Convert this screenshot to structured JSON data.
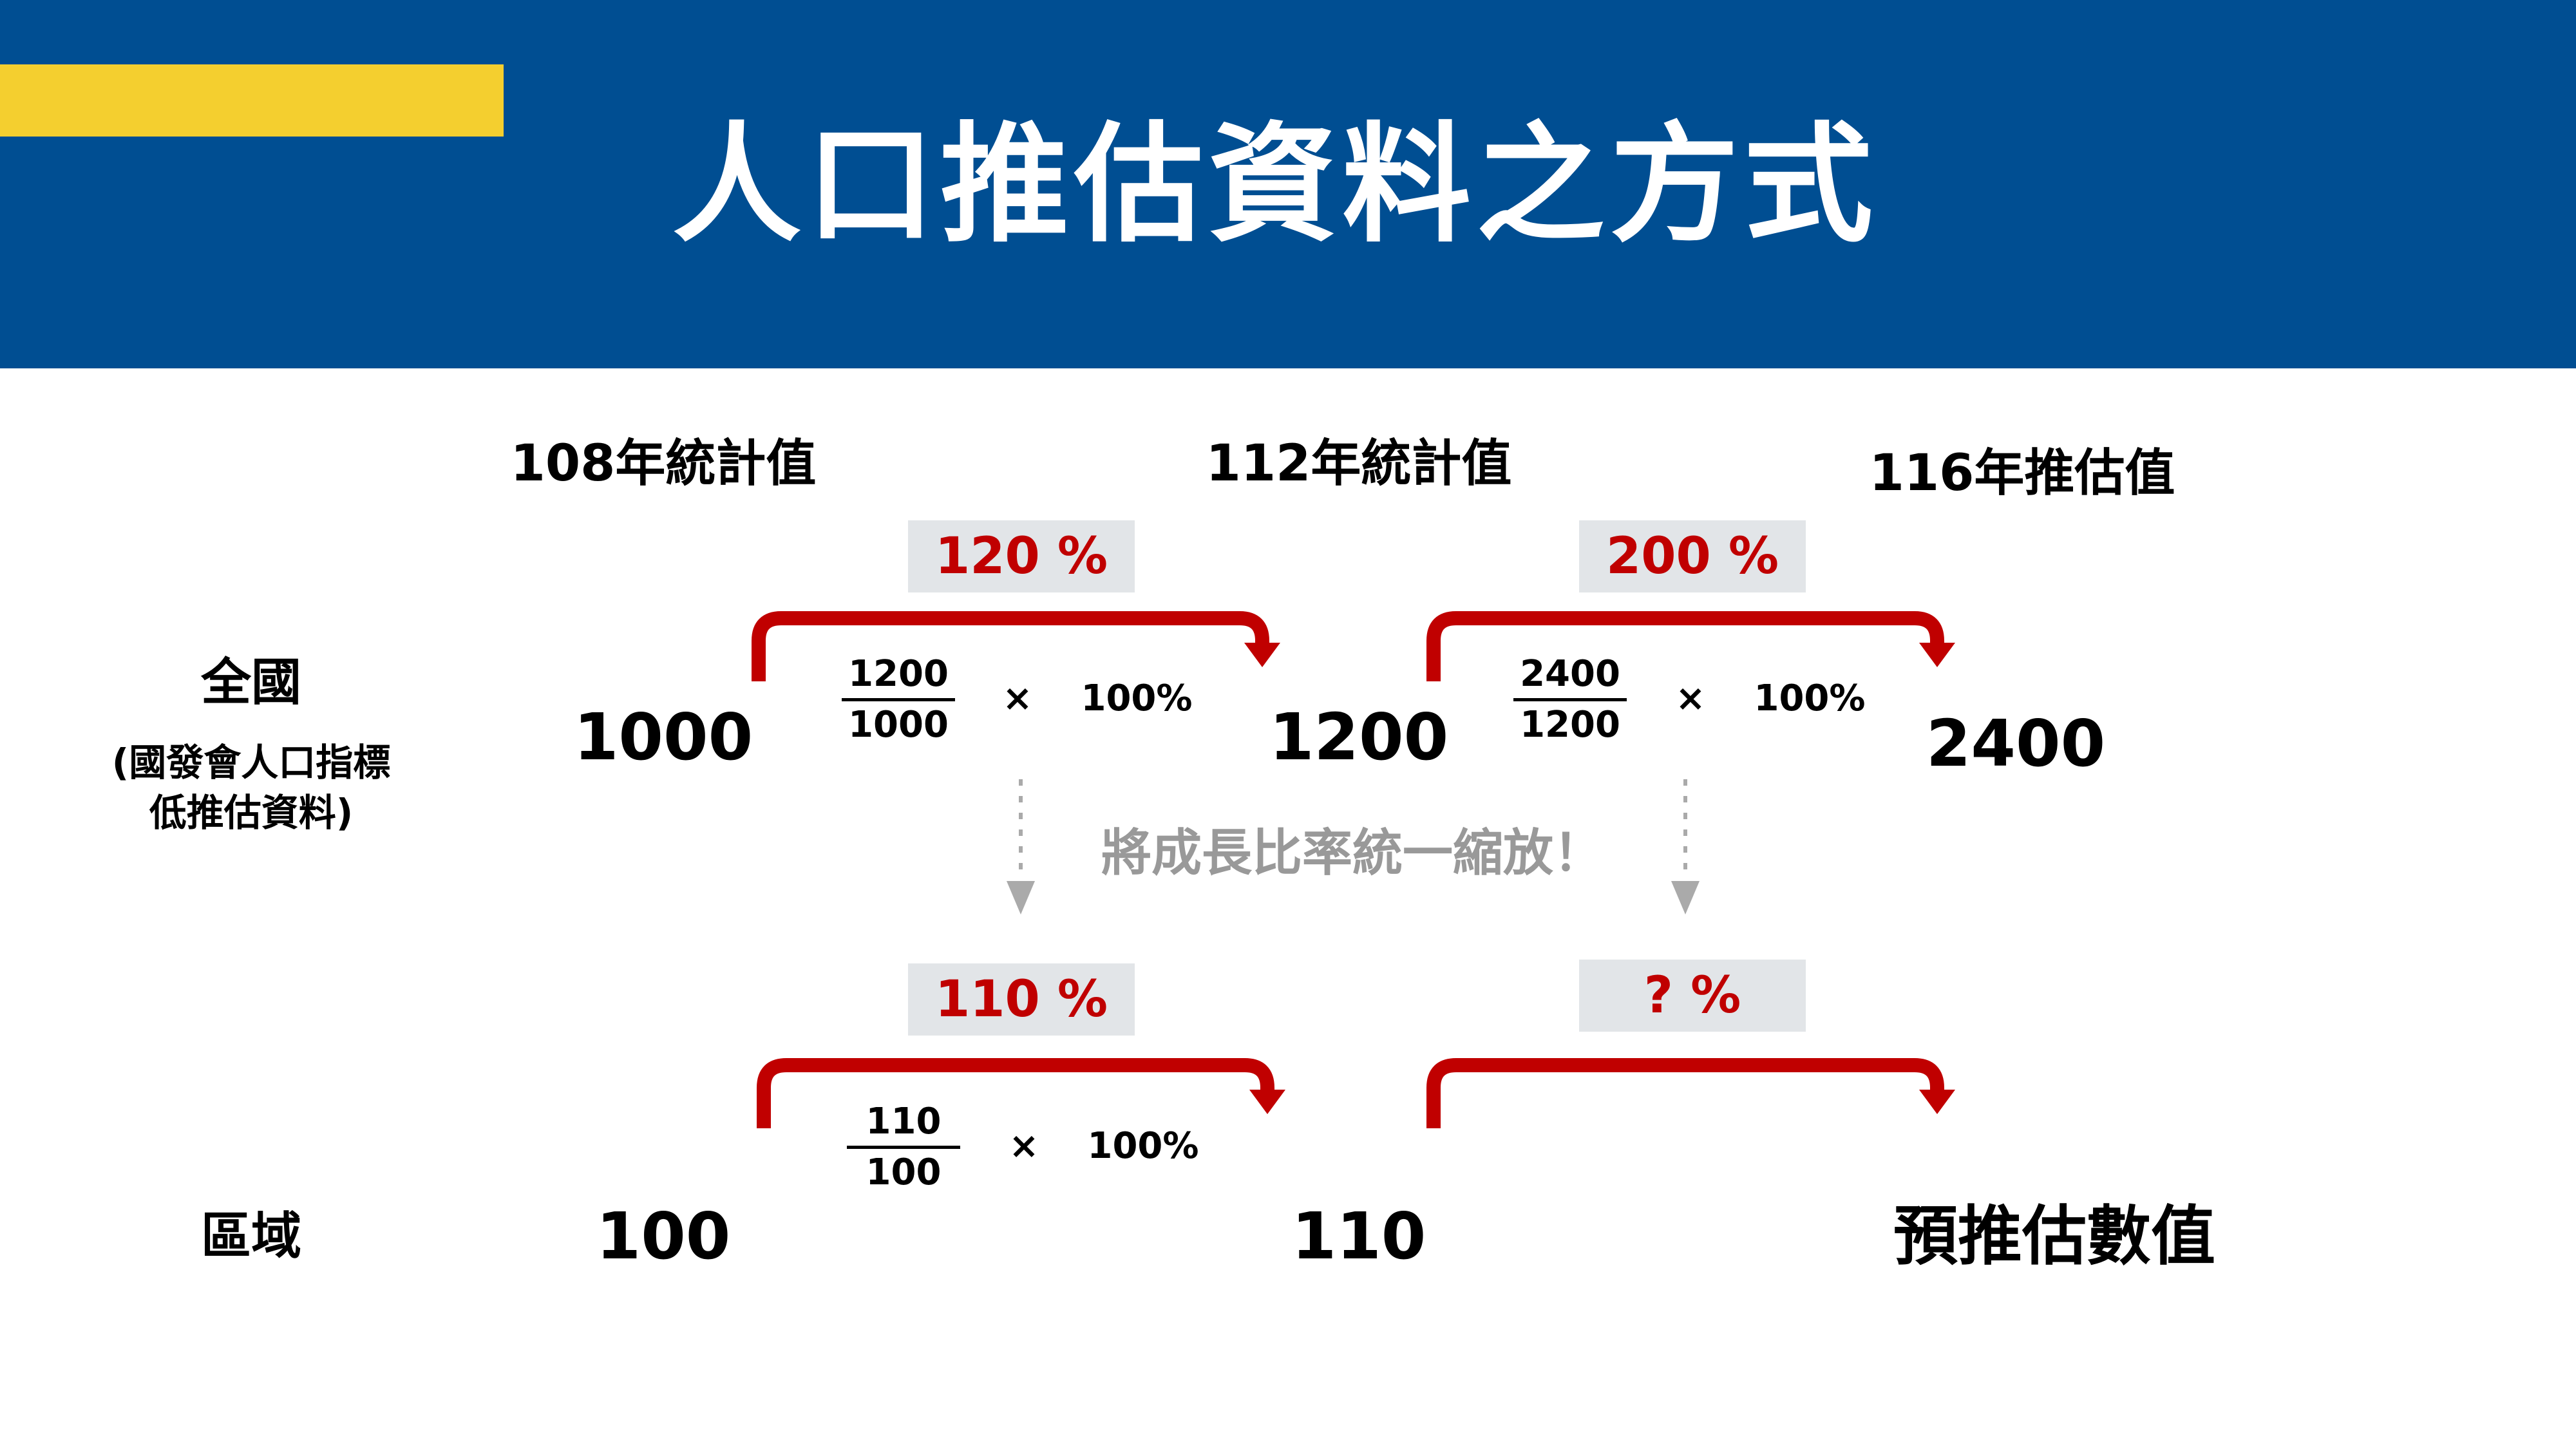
{
  "header": {
    "title": "人口推估資料之方式"
  },
  "columns": {
    "year108": "108年統計值",
    "year112": "112年統計值",
    "year116": "116年推估值"
  },
  "national": {
    "label": "全國",
    "note_line1": "(國發會人口指標",
    "note_line2": "低推估資料)",
    "value108": "1000",
    "value112": "1200",
    "value116": "2400",
    "rate1": "120 %",
    "rate2": "200 %",
    "formula1": {
      "numerator": "1200",
      "denominator": "1000",
      "times": "×",
      "percent": "100%"
    },
    "formula2": {
      "numerator": "2400",
      "denominator": "1200",
      "times": "×",
      "percent": "100%"
    }
  },
  "middle_caption": "將成長比率統一縮放！",
  "regional": {
    "label": "區域",
    "value108": "100",
    "value112": "110",
    "value116": "預推估數值",
    "rate1": "110 %",
    "rate2": "? %",
    "formula1": {
      "numerator": "110",
      "denominator": "100",
      "times": "×",
      "percent": "100%"
    }
  },
  "colors": {
    "header": "#004E92",
    "accent": "#F4CF2F",
    "arrow": "#C00000",
    "rate_box": "#E2E5E8",
    "caption": "#999999"
  }
}
